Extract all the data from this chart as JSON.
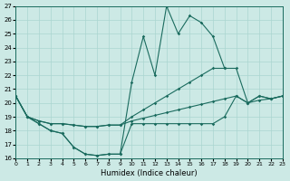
{
  "xlabel": "Humidex (Indice chaleur)",
  "bg_color": "#cce9e5",
  "grid_color": "#aad5d0",
  "line_color": "#1a6b5e",
  "xlim": [
    0,
    23
  ],
  "ylim": [
    16,
    27
  ],
  "xticks": [
    0,
    1,
    2,
    3,
    4,
    5,
    6,
    7,
    8,
    9,
    10,
    11,
    12,
    13,
    14,
    15,
    16,
    17,
    18,
    19,
    20,
    21,
    22,
    23
  ],
  "yticks": [
    16,
    17,
    18,
    19,
    20,
    21,
    22,
    23,
    24,
    25,
    26,
    27
  ],
  "series": [
    {
      "x": [
        0,
        1,
        2,
        3,
        4,
        5,
        6,
        7,
        8,
        9,
        10,
        11,
        12,
        13,
        14,
        15,
        16,
        17,
        18
      ],
      "y": [
        20.5,
        19.0,
        18.5,
        18.0,
        17.8,
        16.8,
        16.3,
        16.2,
        16.3,
        16.3,
        21.5,
        24.8,
        22.0,
        27.0,
        25.0,
        26.3,
        25.8,
        24.8,
        22.5
      ]
    },
    {
      "x": [
        0,
        1,
        2,
        3,
        4,
        5,
        6,
        7,
        8,
        9,
        10,
        11,
        12,
        13,
        14,
        15,
        16,
        17,
        18,
        19,
        20,
        21,
        22,
        23
      ],
      "y": [
        20.5,
        19.0,
        18.7,
        18.5,
        18.5,
        18.4,
        18.3,
        18.3,
        18.4,
        18.4,
        19.0,
        19.5,
        20.0,
        20.5,
        21.0,
        21.5,
        22.0,
        22.5,
        22.5,
        22.5,
        20.0,
        20.5,
        20.3,
        20.5
      ]
    },
    {
      "x": [
        0,
        1,
        2,
        3,
        4,
        5,
        6,
        7,
        8,
        9,
        10,
        11,
        12,
        13,
        14,
        15,
        16,
        17,
        18,
        19,
        20,
        21,
        22,
        23
      ],
      "y": [
        20.5,
        19.0,
        18.7,
        18.5,
        18.5,
        18.4,
        18.3,
        18.3,
        18.4,
        18.4,
        18.7,
        18.9,
        19.1,
        19.3,
        19.5,
        19.7,
        19.9,
        20.1,
        20.3,
        20.5,
        20.0,
        20.2,
        20.3,
        20.5
      ]
    },
    {
      "x": [
        0,
        1,
        2,
        3,
        4,
        5,
        6,
        7,
        8,
        9,
        10,
        11,
        12,
        13,
        14,
        15,
        16,
        17,
        18,
        19,
        20,
        21,
        22,
        23
      ],
      "y": [
        20.5,
        19.0,
        18.5,
        18.0,
        17.8,
        16.8,
        16.3,
        16.2,
        16.3,
        16.3,
        18.5,
        18.5,
        18.5,
        18.5,
        18.5,
        18.5,
        18.5,
        18.5,
        19.0,
        20.5,
        20.0,
        20.5,
        20.3,
        20.5
      ]
    }
  ]
}
